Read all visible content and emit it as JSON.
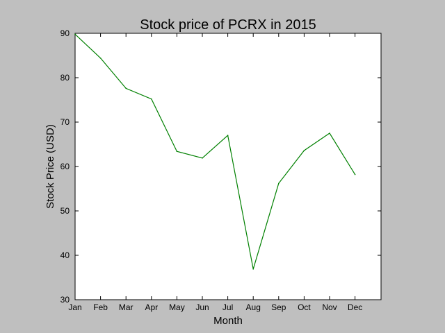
{
  "chart_data": {
    "type": "line",
    "title": "Stock price of PCRX in 2015",
    "xlabel": "Month",
    "ylabel": "Stock Price (USD)",
    "categories": [
      "Jan",
      "Feb",
      "Mar",
      "Apr",
      "May",
      "Jun",
      "Jul",
      "Aug",
      "Sep",
      "Oct",
      "Nov",
      "Dec"
    ],
    "values": [
      89.8,
      84.4,
      77.6,
      75.2,
      63.4,
      61.9,
      67.0,
      36.9,
      56.2,
      63.6,
      67.5,
      58.2
    ],
    "ylim": [
      30,
      90
    ],
    "yticks": [
      30,
      40,
      50,
      60,
      70,
      80,
      90
    ],
    "grid": false,
    "line_color": "#008000",
    "plot_background": "#ffffff",
    "figure_background": "#bfbfbf"
  }
}
